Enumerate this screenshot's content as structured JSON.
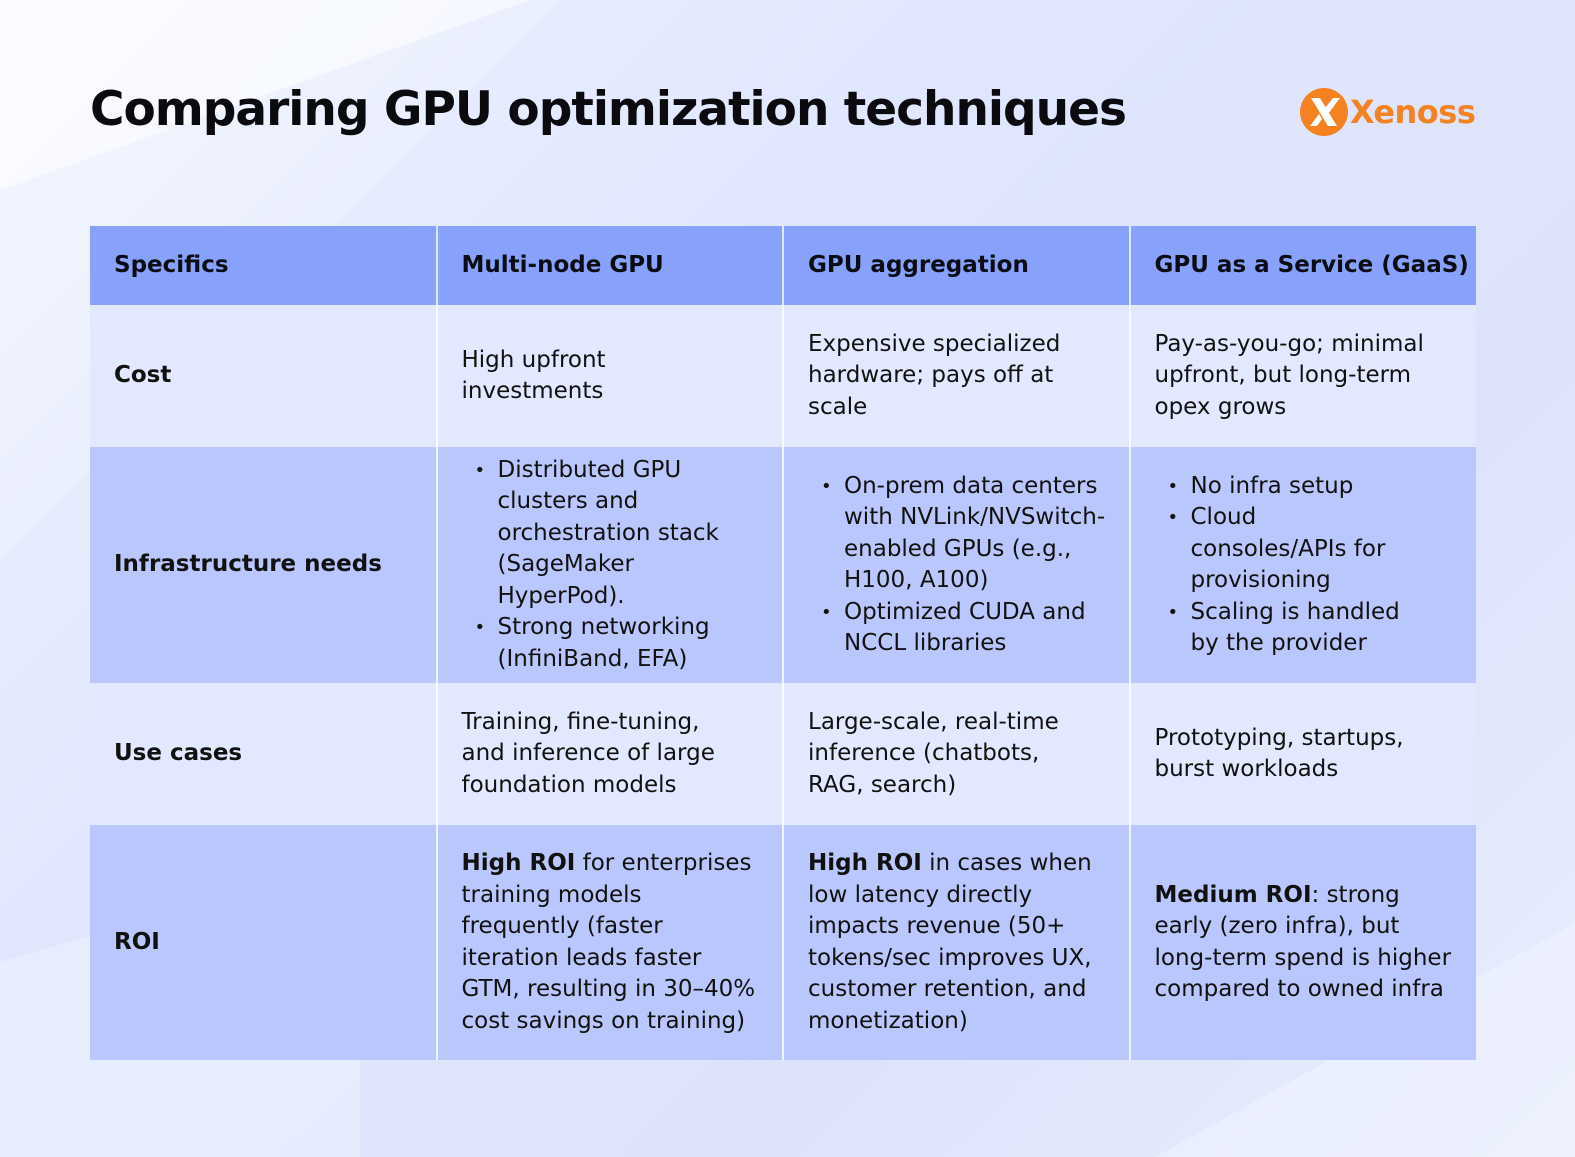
{
  "title": "Comparing GPU optimization techniques",
  "logo": {
    "text": "Xenoss",
    "icon": "xenoss-x-icon",
    "color": "#f58220"
  },
  "table": {
    "headers": [
      "Specifics",
      "Multi-node GPU",
      "GPU aggregation",
      "GPU as a Service (GaaS)"
    ],
    "cost": {
      "label": "Cost",
      "multi_node": "High upfront investments",
      "aggregation": "Expensive specialized hardware; pays off at scale",
      "gaas": "Pay-as-you-go; minimal upfront, but long-term opex grows"
    },
    "infrastructure": {
      "label": "Infrastructure needs",
      "multi_node": [
        "Distributed GPU clusters and orchestration stack (SageMaker HyperPod).",
        "Strong networking (InfiniBand, EFA)"
      ],
      "aggregation": [
        "On-prem data centers with NVLink/NVSwitch-enabled GPUs (e.g., H100, A100)",
        "Optimized CUDA and NCCL libraries"
      ],
      "gaas": [
        "No infra setup",
        "Cloud consoles/APIs for provisioning",
        "Scaling is handled by the provider"
      ]
    },
    "use_cases": {
      "label": "Use cases",
      "multi_node": "Training, fine-tuning, and inference of large foundation models",
      "aggregation": "Large-scale, real-time inference (chatbots, RAG, search)",
      "gaas": "Prototyping, startups, burst workloads"
    },
    "roi": {
      "label": "ROI",
      "multi_node": {
        "bold": "High ROI",
        "rest": " for enterprises training models frequently (faster iteration leads faster GTM, resulting in 30–40% cost savings on training)"
      },
      "aggregation": {
        "bold": "High ROI",
        "rest": " in cases when low latency directly impacts revenue (50+ tokens/sec improves UX, customer retention, and monetization)"
      },
      "gaas": {
        "bold": "Medium ROI",
        "rest": ": strong early (zero infra), but long-term spend is higher compared to owned infra"
      }
    }
  }
}
